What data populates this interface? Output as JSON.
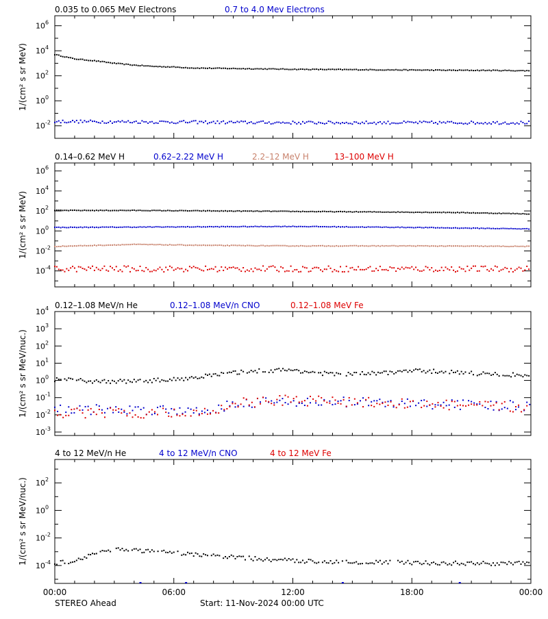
{
  "x_axis": {
    "tick_labels": [
      "00:00",
      "06:00",
      "12:00",
      "18:00",
      "00:00"
    ],
    "range_hours": [
      0,
      24
    ]
  },
  "footer": {
    "spacecraft": "STEREO Ahead",
    "start": "Start: 11-Nov-2024 00:00 UTC"
  },
  "colors": {
    "black": "#000000",
    "blue": "#0000cc",
    "tan": "#c8826c",
    "red": "#dd0000"
  },
  "chart_data": [
    {
      "type": "scatter",
      "yscale": "log",
      "ylim_exp": [
        -3,
        6.8
      ],
      "ticks_exp": [
        -2,
        0,
        2,
        4,
        6
      ],
      "ylabel": "1/(cm² s sr MeV)",
      "legend": [
        {
          "label": "0.035 to 0.065 MeV Electrons",
          "color": "#000000"
        },
        {
          "label": "0.7 to 4.0 Mev Electrons",
          "color": "#0000cc"
        }
      ],
      "series": [
        {
          "name": "0.035 to 0.065 MeV Electrons",
          "color": "#000000",
          "x": [
            0,
            1,
            2,
            3,
            4,
            5,
            6,
            7,
            8,
            9,
            10,
            12,
            14,
            16,
            18,
            20,
            22,
            24
          ],
          "log_y": [
            3.7,
            3.35,
            3.2,
            3.0,
            2.85,
            2.75,
            2.7,
            2.62,
            2.6,
            2.58,
            2.56,
            2.52,
            2.5,
            2.48,
            2.46,
            2.44,
            2.43,
            2.4
          ],
          "noise": 0.03
        },
        {
          "name": "0.7 to 4.0 Mev Electrons",
          "color": "#0000cc",
          "x": [
            0,
            12,
            24
          ],
          "log_y": [
            -1.65,
            -1.75,
            -1.75
          ],
          "noise": 0.12
        }
      ]
    },
    {
      "type": "scatter",
      "yscale": "log",
      "ylim_exp": [
        -5.6,
        6.8
      ],
      "ticks_exp": [
        -4,
        -2,
        0,
        2,
        4,
        6
      ],
      "ylabel": "1/(cm² s sr MeV)",
      "legend": [
        {
          "label": "0.14–0.62 MeV H",
          "color": "#000000"
        },
        {
          "label": "0.62–2.22 MeV H",
          "color": "#0000cc"
        },
        {
          "label": "2.2–12 MeV H",
          "color": "#c8826c"
        },
        {
          "label": "13–100 MeV H",
          "color": "#dd0000"
        }
      ],
      "series": [
        {
          "name": "0.14–0.62 MeV H",
          "color": "#000000",
          "x": [
            0,
            4,
            8,
            12,
            16,
            20,
            24
          ],
          "log_y": [
            2.05,
            2.05,
            2.0,
            1.95,
            1.9,
            1.85,
            1.7
          ],
          "noise": 0.03
        },
        {
          "name": "0.62–2.22 MeV H",
          "color": "#0000cc",
          "x": [
            0,
            6,
            12,
            18,
            24
          ],
          "log_y": [
            0.35,
            0.4,
            0.45,
            0.35,
            0.2
          ],
          "noise": 0.03
        },
        {
          "name": "2.2–12 MeV H",
          "color": "#c8826c",
          "x": [
            0,
            2,
            4,
            8,
            12,
            18,
            24
          ],
          "log_y": [
            -1.55,
            -1.45,
            -1.35,
            -1.45,
            -1.5,
            -1.5,
            -1.55
          ],
          "noise": 0.03
        },
        {
          "name": "13–100 MeV H",
          "color": "#dd0000",
          "x": [
            0,
            12,
            24
          ],
          "log_y": [
            -3.8,
            -3.8,
            -3.8
          ],
          "noise": 0.3
        }
      ]
    },
    {
      "type": "scatter",
      "yscale": "log",
      "ylim_exp": [
        -3.2,
        4
      ],
      "ticks_exp": [
        -3,
        -2,
        -1,
        0,
        1,
        2,
        3,
        4
      ],
      "ylabel": "1/(cm² s sr MeV/nuc.)",
      "legend": [
        {
          "label": "0.12–1.08 MeV/n He",
          "color": "#000000"
        },
        {
          "label": "0.12–1.08 MeV/n CNO",
          "color": "#0000cc"
        },
        {
          "label": "0.12–1.08 MeV Fe",
          "color": "#dd0000"
        }
      ],
      "series": [
        {
          "name": "0.12–1.08 MeV/n He",
          "color": "#000000",
          "x": [
            0,
            2,
            4,
            6,
            8,
            10,
            12,
            14,
            16,
            18,
            20,
            22,
            24
          ],
          "log_y": [
            0.05,
            -0.05,
            -0.05,
            0.05,
            0.3,
            0.55,
            0.6,
            0.35,
            0.4,
            0.55,
            0.5,
            0.35,
            0.3
          ],
          "noise": 0.12
        },
        {
          "name": "0.12–1.08 MeV/n CNO",
          "color": "#0000cc",
          "x": [
            0,
            8,
            9,
            12,
            18,
            24
          ],
          "log_y": [
            -1.7,
            -1.7,
            -1.3,
            -1.2,
            -1.35,
            -1.5
          ],
          "noise": 0.3
        },
        {
          "name": "0.12–1.08 MeV Fe",
          "color": "#dd0000",
          "x": [
            0,
            8,
            9,
            12,
            18,
            24
          ],
          "log_y": [
            -1.9,
            -1.9,
            -1.3,
            -1.15,
            -1.35,
            -1.6
          ],
          "noise": 0.3
        }
      ]
    },
    {
      "type": "scatter",
      "yscale": "log",
      "ylim_exp": [
        -5.3,
        3.7
      ],
      "ticks_exp": [
        -4,
        -2,
        0,
        2
      ],
      "ylabel": "1/(cm² s sr MeV/nuc.)",
      "legend": [
        {
          "label": "4 to 12 MeV/n He",
          "color": "#000000"
        },
        {
          "label": "4 to 12 MeV/n CNO",
          "color": "#0000cc"
        },
        {
          "label": "4 to 12 MeV Fe",
          "color": "#dd0000"
        }
      ],
      "series": [
        {
          "name": "4 to 12 MeV/n He",
          "color": "#000000",
          "x": [
            0,
            1,
            2,
            3,
            5,
            7,
            9,
            11,
            13,
            15,
            18,
            21,
            24
          ],
          "log_y": [
            -3.8,
            -3.7,
            -3.1,
            -2.8,
            -3.0,
            -3.2,
            -3.4,
            -3.6,
            -3.7,
            -3.75,
            -3.8,
            -3.85,
            -3.85
          ],
          "noise": 0.15
        },
        {
          "name": "4 to 12 MeV/n CNO",
          "color": "#0000cc",
          "x": [
            4.3,
            6.6,
            14.5,
            20.4
          ],
          "log_y": [
            -5.3,
            -5.3,
            -5.3,
            -5.3
          ],
          "noise": 0
        }
      ]
    }
  ]
}
